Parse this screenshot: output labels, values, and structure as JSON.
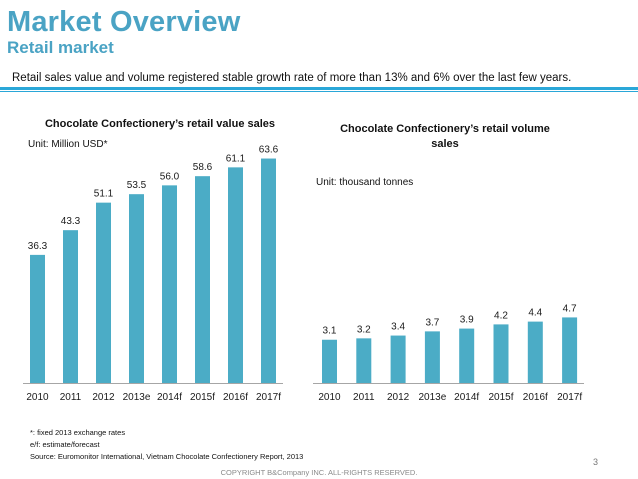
{
  "header": {
    "title": "Market Overview",
    "subtitle": "Retail market",
    "lead": "Retail sales value and volume registered stable growth rate of more than 13%  and 6% over the last few years."
  },
  "colors": {
    "accent": "#4aa3c4",
    "bar": "#4bacc6",
    "rule": "#2aa7d8",
    "axis": "#a6a6a6"
  },
  "chart_data": [
    {
      "type": "bar",
      "title": "Chocolate Confectionery’s retail value sales",
      "unit": "Unit: Million USD*",
      "xlabel": "",
      "ylabel": "",
      "categories": [
        "2010",
        "2011",
        "2012",
        "2013e",
        "2014f",
        "2015f",
        "2016f",
        "2017f"
      ],
      "values": [
        36.3,
        43.3,
        51.1,
        53.5,
        56.0,
        58.6,
        61.1,
        63.6
      ],
      "labels": [
        "36.3",
        "43.3",
        "51.1",
        "53.5",
        "56.0",
        "58.6",
        "61.1",
        "63.6"
      ],
      "ylim": [
        0,
        68
      ],
      "grid": false,
      "legend": "none"
    },
    {
      "type": "bar",
      "title": "Chocolate Confectionery’s retail volume sales",
      "unit": "Unit: thousand tonnes",
      "xlabel": "",
      "ylabel": "",
      "categories": [
        "2010",
        "2011",
        "2012",
        "2013e",
        "2014f",
        "2015f",
        "2016f",
        "2017f"
      ],
      "values": [
        3.1,
        3.2,
        3.4,
        3.7,
        3.9,
        4.2,
        4.4,
        4.7
      ],
      "labels": [
        "3.1",
        "3.2",
        "3.4",
        "3.7",
        "3.9",
        "4.2",
        "4.4",
        "4.7"
      ],
      "ylim": [
        0,
        17.2
      ],
      "grid": false,
      "legend": "none"
    }
  ],
  "footnotes": {
    "note1": "*: fixed 2013 exchange rates",
    "note2": "e/f: estimate/forecast",
    "source": "Source: Euromonitor International, Vietnam  Chocolate Confectionery Report, 2013"
  },
  "footer": {
    "copyright": "COPYRIGHT B&Company INC. ALL-RIGHTS RESERVED.",
    "page": "3"
  }
}
